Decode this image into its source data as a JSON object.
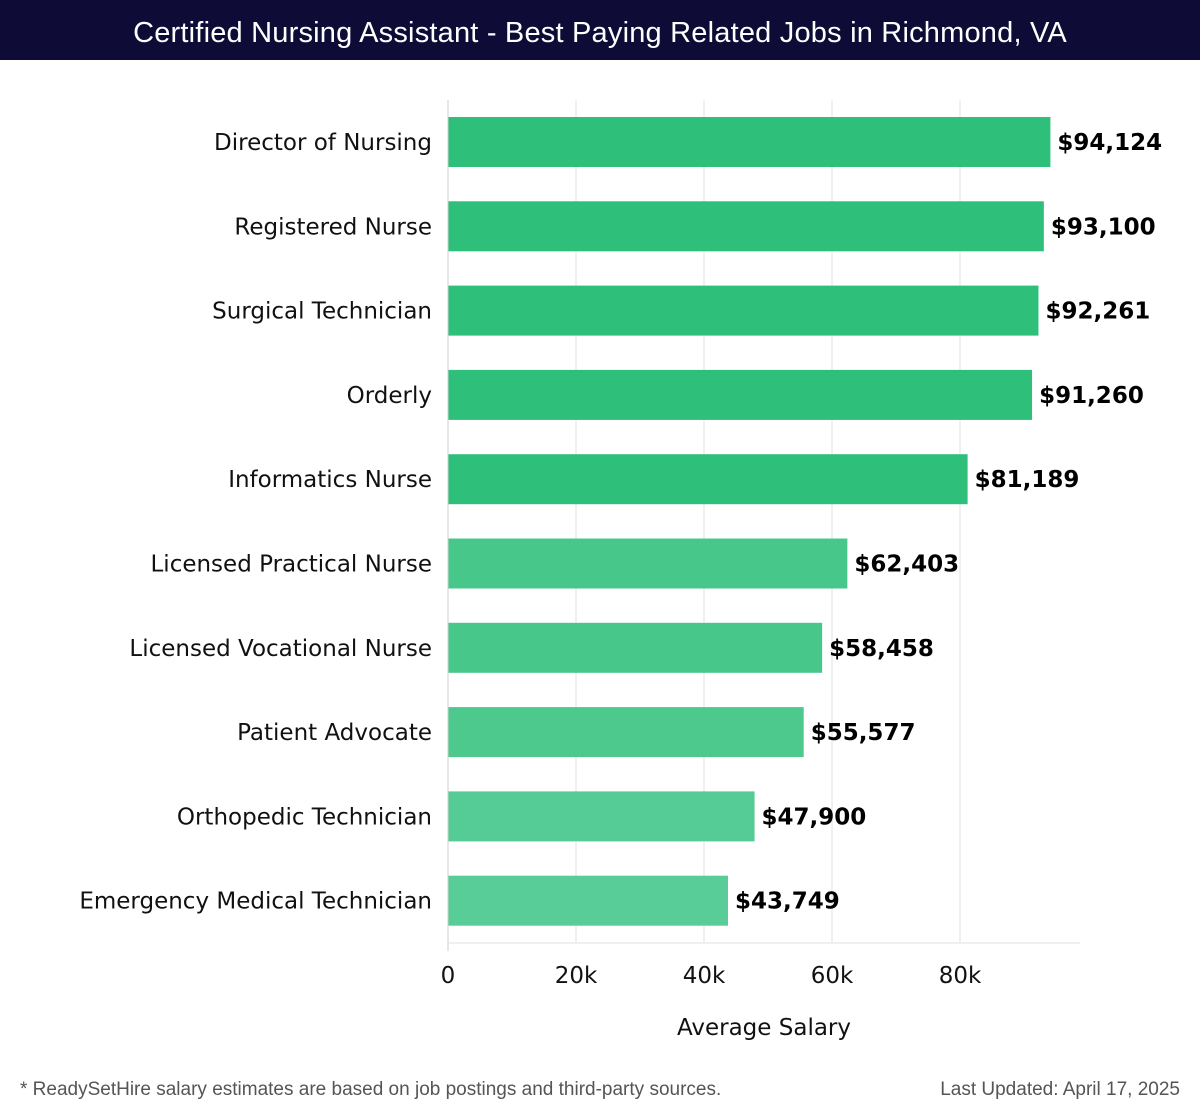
{
  "header": {
    "title": "Certified Nursing Assistant - Best Paying Related Jobs in Richmond, VA"
  },
  "chart_data": {
    "type": "bar",
    "orientation": "horizontal",
    "categories": [
      "Director of Nursing",
      "Registered Nurse",
      "Surgical Technician",
      "Orderly",
      "Informatics Nurse",
      "Licensed Practical Nurse",
      "Licensed Vocational Nurse",
      "Patient Advocate",
      "Orthopedic Technician",
      "Emergency Medical Technician"
    ],
    "values": [
      94124,
      93100,
      92261,
      91260,
      81189,
      62403,
      58458,
      55577,
      47900,
      43749
    ],
    "value_labels": [
      "$94,124",
      "$93,100",
      "$92,261",
      "$91,260",
      "$81,189",
      "$62,403",
      "$58,458",
      "$55,577",
      "$47,900",
      "$43,749"
    ],
    "bar_colors": [
      "#2ebf7a",
      "#2ebf7a",
      "#2ebf7a",
      "#2ebf7a",
      "#2ebf7a",
      "#48c78b",
      "#48c78b",
      "#4ec98e",
      "#55cc95",
      "#58cd97"
    ],
    "xlabel": "Average Salary",
    "ylabel": "",
    "xlim": [
      0,
      99000
    ],
    "x_ticks": [
      0,
      20000,
      40000,
      60000,
      80000
    ],
    "x_tick_labels": [
      "0",
      "20k",
      "40k",
      "60k",
      "80k"
    ],
    "grid": "vertical",
    "legend": "none"
  },
  "footer": {
    "note": "* ReadySetHire salary estimates are based on job postings and third-party sources.",
    "updated": "Last Updated: April 17, 2025"
  }
}
